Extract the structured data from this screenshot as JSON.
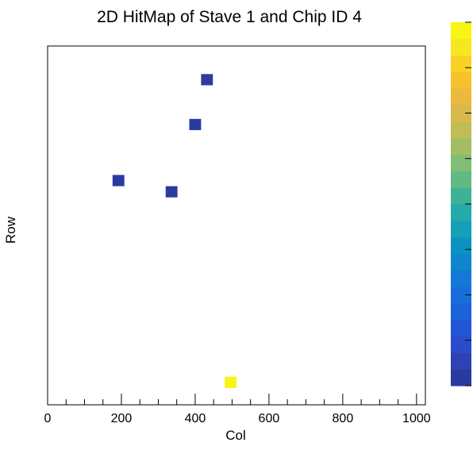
{
  "chart_data": {
    "type": "heatmap",
    "title": "2D HitMap of Stave 1 and Chip ID 4",
    "xlabel": "Col",
    "ylabel": "Row",
    "xlim": [
      0,
      1024
    ],
    "ylim": [
      0,
      512
    ],
    "x_ticks": [
      0,
      200,
      400,
      600,
      800,
      1000
    ],
    "y_ticks": [],
    "bin_width": 32,
    "bin_height": 16,
    "colormap": [
      "#2a3ba0",
      "#2d42b4",
      "#2a4cca",
      "#2256d6",
      "#1c62d8",
      "#176edb",
      "#1479d6",
      "#0f86cc",
      "#0c92c1",
      "#16a0b7",
      "#24aaa8",
      "#3fb296",
      "#60ba84",
      "#83bd73",
      "#a3be62",
      "#c2bc54",
      "#dab94c",
      "#eab93d",
      "#f5c22b",
      "#f8d326",
      "#f6e71f",
      "#f8f514"
    ],
    "bins": [
      {
        "x": 432,
        "y": 464,
        "value": 1
      },
      {
        "x": 400,
        "y": 400,
        "value": 1
      },
      {
        "x": 192,
        "y": 320,
        "value": 1
      },
      {
        "x": 336,
        "y": 304,
        "value": 1
      },
      {
        "x": 496,
        "y": 32,
        "value": 2
      }
    ],
    "zlim": [
      1,
      2
    ],
    "grid": false,
    "legend": "colorbar-right"
  }
}
